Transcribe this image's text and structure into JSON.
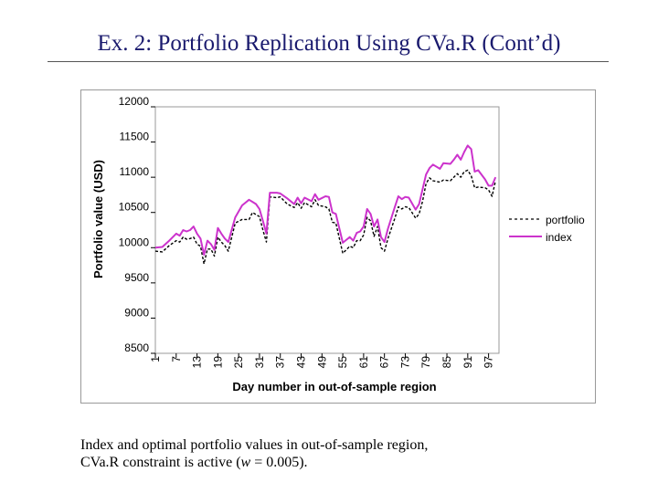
{
  "slide": {
    "title": "Ex. 2: Portfolio Replication Using CVa.R (Cont’d)"
  },
  "caption": {
    "line1": "Index and optimal portfolio values in out-of-sample region,",
    "line2_pre": "CVa.R constraint is active (",
    "line2_var": "w",
    "line2_post": " = 0.005)."
  },
  "chart_data": {
    "type": "line",
    "title": "",
    "xlabel": "Day number in out-of-sample region",
    "ylabel": "Portfolio value (USD)",
    "xlim": [
      1,
      100
    ],
    "ylim": [
      8500,
      12000
    ],
    "yticks": [
      "12000",
      "11500",
      "11000",
      "10500",
      "10000",
      "9500",
      "9000",
      "8500"
    ],
    "ytick_values": [
      12000,
      11500,
      11000,
      10500,
      10000,
      9500,
      9000,
      8500
    ],
    "xticks": [
      "1",
      "7",
      "13",
      "19",
      "25",
      "31",
      "37",
      "43",
      "49",
      "55",
      "61",
      "67",
      "73",
      "79",
      "85",
      "91",
      "97"
    ],
    "xtick_values": [
      1,
      7,
      13,
      19,
      25,
      31,
      37,
      43,
      49,
      55,
      61,
      67,
      73,
      79,
      85,
      91,
      97
    ],
    "legend_position": "right",
    "series": [
      {
        "name": "portfolio",
        "color": "#000000",
        "style": "dashed",
        "x": [
          1,
          3,
          5,
          7,
          8,
          9,
          10,
          11,
          12,
          13,
          14,
          15,
          16,
          17,
          18,
          19,
          20,
          21,
          22,
          24,
          26,
          28,
          29,
          30,
          31,
          32,
          33,
          34,
          36,
          37,
          39,
          41,
          42,
          43,
          44,
          46,
          47,
          48,
          50,
          51,
          52,
          53,
          55,
          57,
          58,
          59,
          60,
          61,
          62,
          63,
          64,
          65,
          66,
          67,
          68,
          70,
          71,
          72,
          73,
          74,
          76,
          77,
          78,
          79,
          80,
          81,
          83,
          84,
          86,
          87,
          88,
          89,
          90,
          91,
          92,
          93,
          94,
          96,
          97,
          98,
          99
        ],
        "y": [
          9950,
          9940,
          10030,
          10100,
          10080,
          10150,
          10120,
          10130,
          10150,
          10050,
          10020,
          9770,
          9980,
          9980,
          9880,
          10150,
          10080,
          10030,
          9950,
          10350,
          10400,
          10400,
          10500,
          10470,
          10440,
          10250,
          10080,
          10720,
          10710,
          10720,
          10620,
          10570,
          10640,
          10560,
          10640,
          10580,
          10680,
          10600,
          10580,
          10550,
          10360,
          10350,
          9920,
          10020,
          10000,
          10100,
          10100,
          10180,
          10430,
          10380,
          10160,
          10300,
          10000,
          9950,
          10130,
          10420,
          10580,
          10550,
          10580,
          10570,
          10420,
          10480,
          10660,
          10910,
          10990,
          10950,
          10930,
          10960,
          10950,
          11000,
          11050,
          11000,
          11080,
          11100,
          11020,
          10850,
          10860,
          10850,
          10820,
          10730,
          10950
        ]
      },
      {
        "name": "index",
        "color": "#cc33cc",
        "style": "solid",
        "x": [
          1,
          3,
          5,
          7,
          8,
          9,
          10,
          11,
          12,
          13,
          14,
          15,
          16,
          17,
          18,
          19,
          20,
          21,
          22,
          24,
          26,
          28,
          29,
          30,
          31,
          32,
          33,
          34,
          36,
          37,
          39,
          41,
          42,
          43,
          44,
          46,
          47,
          48,
          50,
          51,
          52,
          53,
          55,
          57,
          58,
          59,
          60,
          61,
          62,
          63,
          64,
          65,
          66,
          67,
          68,
          70,
          71,
          72,
          73,
          74,
          76,
          77,
          78,
          79,
          80,
          81,
          83,
          84,
          86,
          87,
          88,
          89,
          90,
          91,
          92,
          93,
          94,
          96,
          97,
          98,
          99
        ],
        "y": [
          10000,
          10010,
          10100,
          10200,
          10170,
          10250,
          10230,
          10250,
          10300,
          10200,
          10130,
          9900,
          10100,
          10050,
          9970,
          10280,
          10200,
          10130,
          10080,
          10430,
          10600,
          10680,
          10650,
          10620,
          10550,
          10380,
          10200,
          10780,
          10780,
          10770,
          10700,
          10620,
          10710,
          10630,
          10710,
          10660,
          10760,
          10680,
          10730,
          10720,
          10500,
          10480,
          10070,
          10150,
          10100,
          10210,
          10230,
          10300,
          10550,
          10480,
          10300,
          10400,
          10150,
          10080,
          10270,
          10580,
          10730,
          10690,
          10720,
          10710,
          10540,
          10620,
          10830,
          11040,
          11130,
          11180,
          11120,
          11200,
          11190,
          11250,
          11320,
          11250,
          11360,
          11450,
          11400,
          11080,
          11100,
          10970,
          10880,
          10880,
          11000
        ]
      }
    ]
  }
}
